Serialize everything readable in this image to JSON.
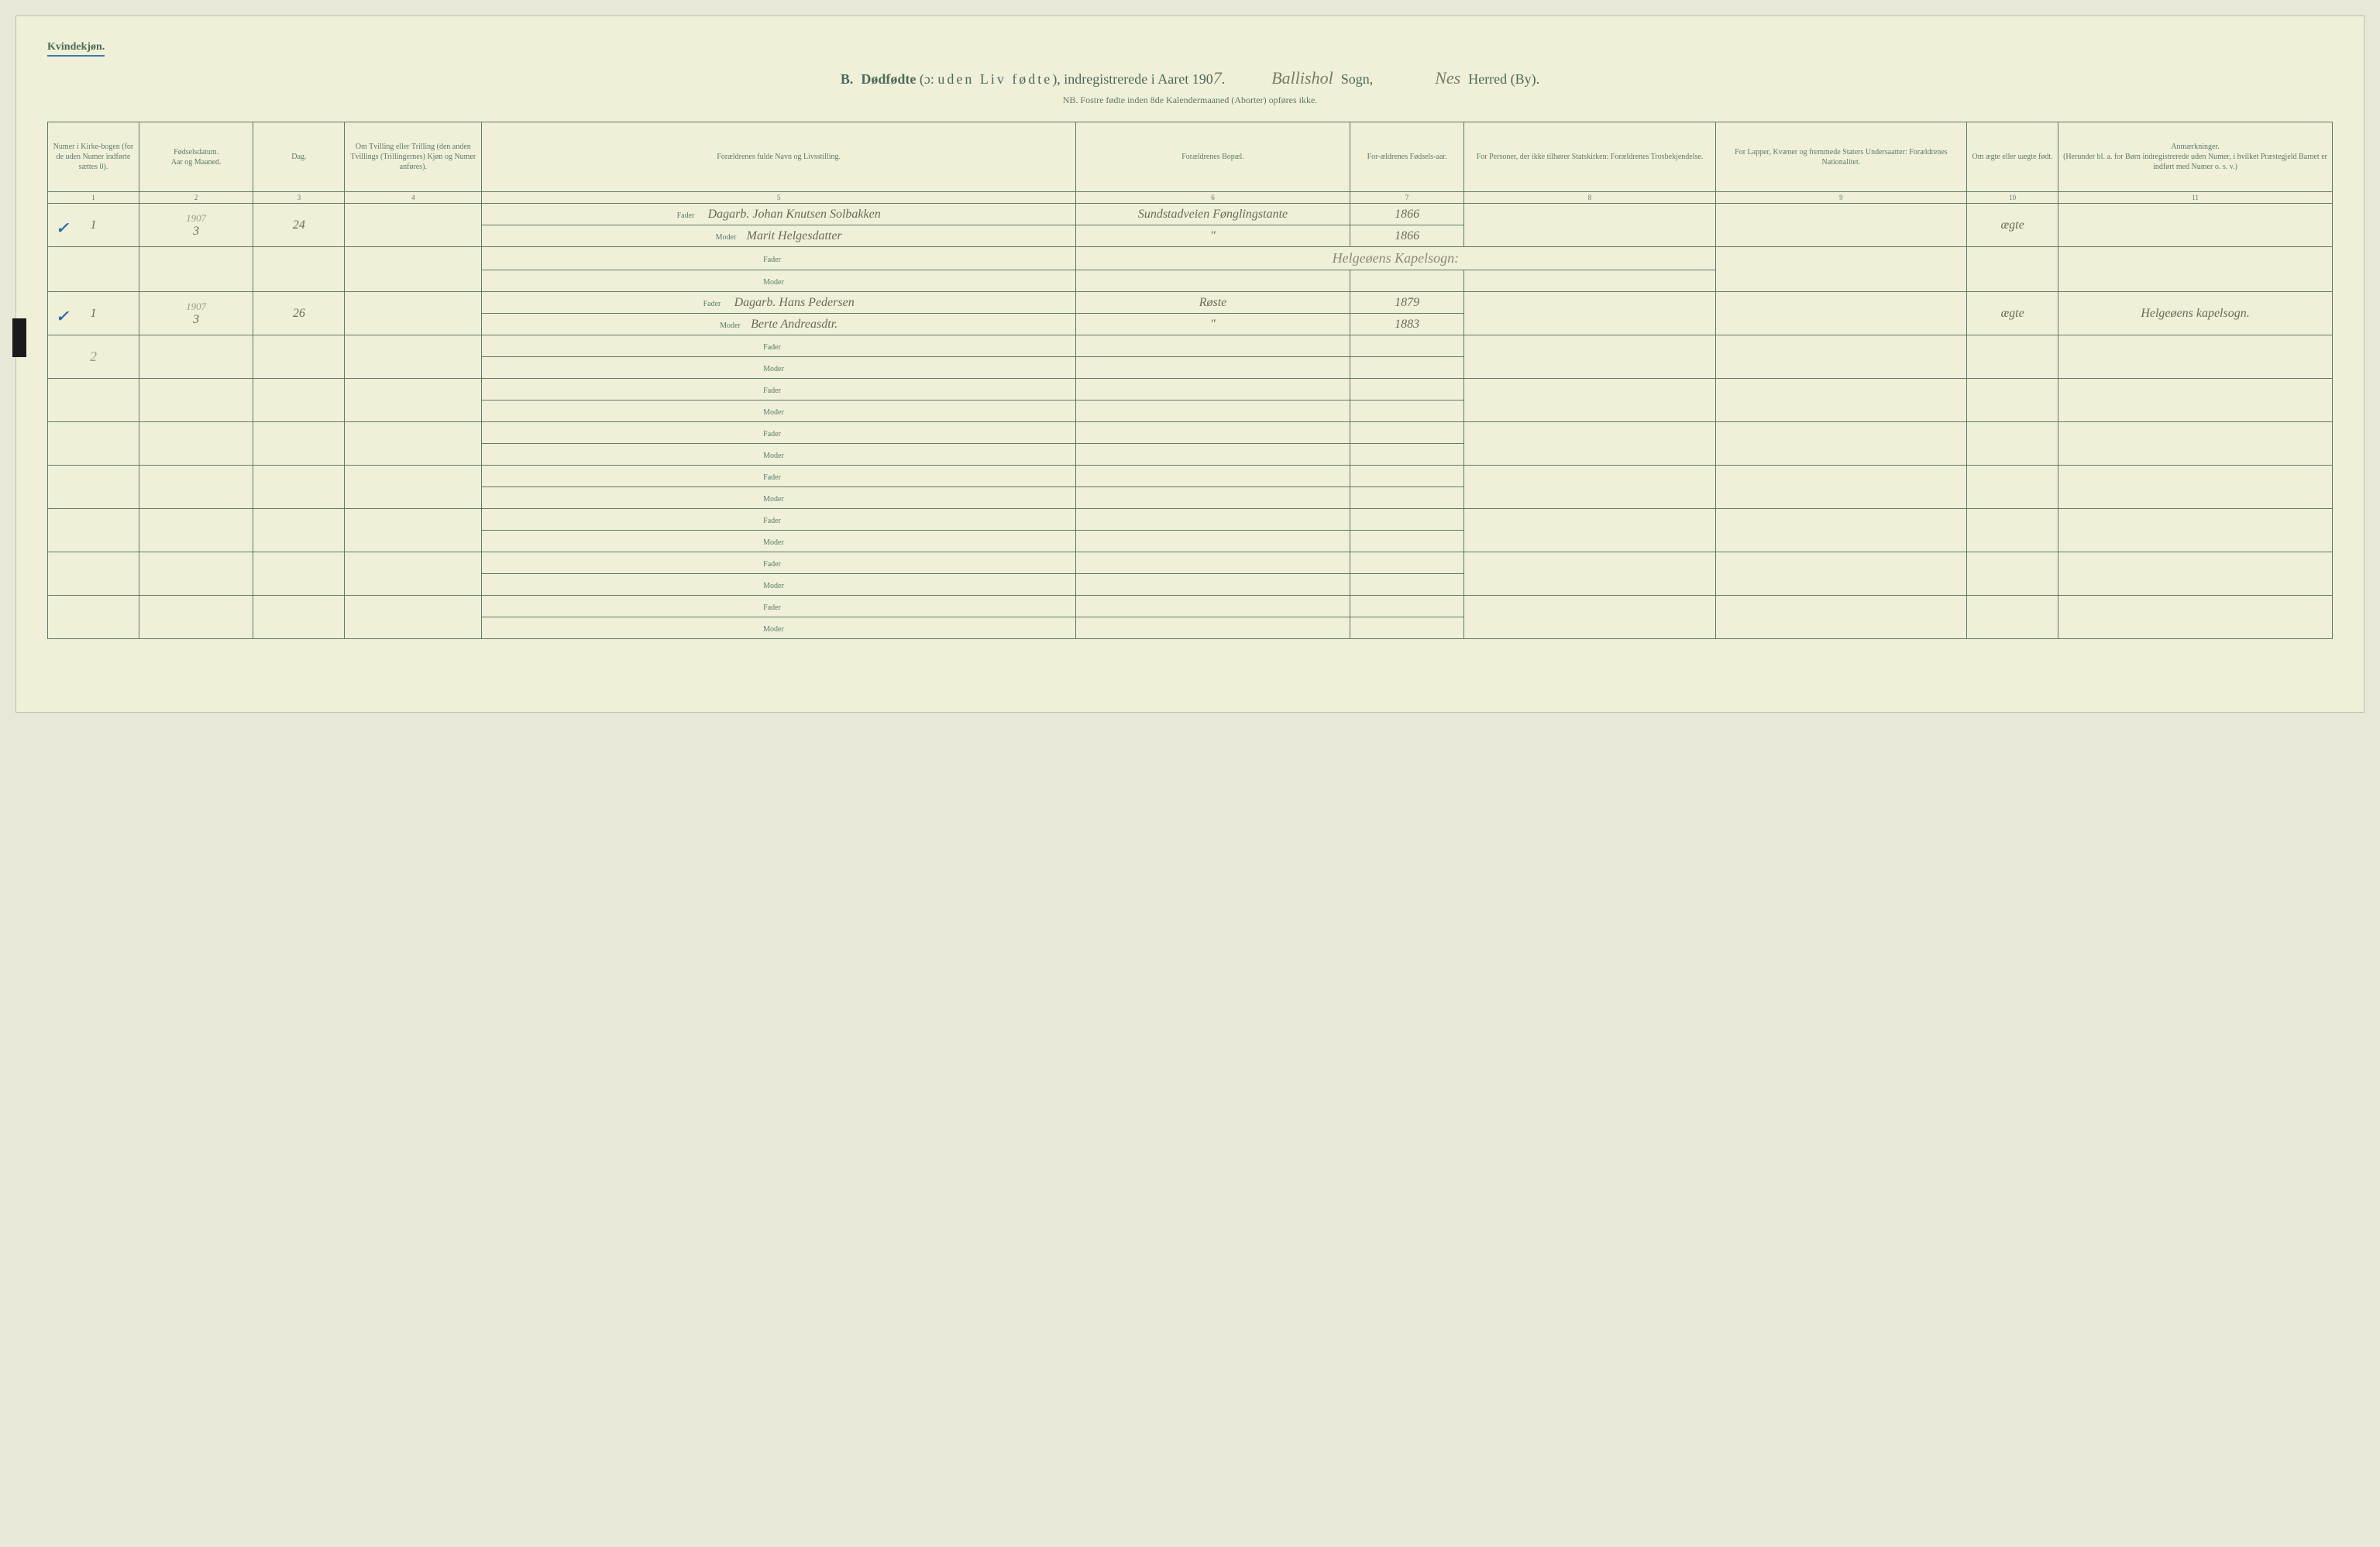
{
  "header": {
    "gender_label": "Kvindekjøn.",
    "title_prefix": "B.",
    "title_main": "Dødfødte (ɔ: uden Liv fødte), indregistrerede i Aaret 190",
    "year_suffix": "7",
    "sogn_written": "Ballishol",
    "sogn_label": "Sogn,",
    "herred_written": "Nes",
    "herred_label": "Herred (By).",
    "subnote": "NB. Fostre fødte inden 8de Kalendermaaned (Aborter) opføres ikke."
  },
  "columns": {
    "headers": [
      "Numer i Kirke-bogen (for de uden Numer indførte sættes 0).",
      "Fødselsdatum.\nAar og Maaned.",
      "Dag.",
      "Om Tvilling eller Trilling (den anden Tvillings (Trillingernes) Kjøn og Numer anføres).",
      "Forældrenes fulde Navn og Livsstilling.",
      "Forældrenes Bopæl.",
      "For-ældrenes Fødsels-aar.",
      "For Personer, der ikke tilhører Statskirken: Forældrenes Trosbekjendelse.",
      "For Lapper, Kvæner og fremmede Staters Undersaatter: Forældrenes Nationalitet.",
      "Om ægte eller uægte født.",
      "Anmærkninger.\n(Herunder bl. a. for Børn indregistrerede uden Numer, i hvilket Præstegjeld Barnet er indført med Numer o. s. v.)"
    ],
    "numbers": [
      "1",
      "2",
      "3",
      "4",
      "5",
      "6",
      "7",
      "8",
      "9",
      "10",
      "11"
    ],
    "widths": [
      "4%",
      "5%",
      "4%",
      "6%",
      "26%",
      "12%",
      "5%",
      "11%",
      "11%",
      "4%",
      "12%"
    ]
  },
  "entries": [
    {
      "check": "✓",
      "num": "1",
      "year": "1907",
      "month": "3",
      "day": "24",
      "twin": "",
      "father": "Dagarb. Johan Knutsen Solbakken",
      "mother": "Marit Helgesdatter",
      "bopel_f": "Sundstadveien Fønglingstante",
      "bopel_m": "\"",
      "fyear_f": "1866",
      "fyear_m": "1866",
      "tros": "",
      "nat": "",
      "aegte": "ægte",
      "anm": ""
    },
    {
      "section_note": "Helgeøens Kapelsogn:"
    },
    {
      "check": "✓",
      "num": "1",
      "year": "1907",
      "month": "3",
      "day": "26",
      "twin": "",
      "father": "Dagarb. Hans Pedersen",
      "mother": "Berte Andreasdtr.",
      "bopel_f": "Røste",
      "bopel_m": "\"",
      "fyear_f": "1879",
      "fyear_m": "1883",
      "tros": "",
      "nat": "",
      "aegte": "ægte",
      "anm": "Helgeøens kapelsogn."
    }
  ],
  "pencil_mark": "2",
  "labels": {
    "fader": "Fader",
    "moder": "Moder"
  },
  "empty_rows": 7,
  "colors": {
    "paper": "#f0f0d8",
    "ink": "#5a7a6a",
    "handwriting": "#6a6a5a",
    "blue_check": "#2a6aaa",
    "underline": "#3a7aaa"
  }
}
